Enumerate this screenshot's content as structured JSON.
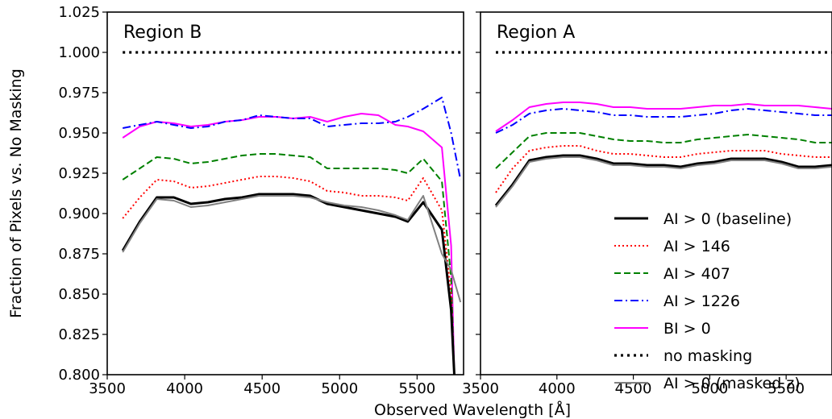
{
  "chart_data": {
    "type": "line",
    "xlabel": "Observed Wavelength [Å]",
    "ylabel": "Fraction of Pixels vs. No Masking",
    "ylim": [
      0.8,
      1.025
    ],
    "yticks": [
      0.8,
      0.825,
      0.85,
      0.875,
      0.9,
      0.925,
      0.95,
      0.975,
      1.0,
      1.025
    ],
    "ytick_labels": [
      "0.800",
      "0.825",
      "0.850",
      "0.875",
      "0.900",
      "0.925",
      "0.950",
      "0.975",
      "1.000",
      "1.025"
    ],
    "xticks": [
      3500,
      4000,
      4500,
      5000,
      5500
    ],
    "xtick_labels": [
      "3500",
      "4000",
      "4500",
      "5000",
      "5500"
    ],
    "legend_location": "lower-right of right panel",
    "grid": false,
    "series_styles": [
      {
        "name": "AI > 0 (baseline)",
        "color": "#000000",
        "dash": "solid",
        "width": 3
      },
      {
        "name": "AI > 146",
        "color": "#ff0000",
        "dash": "dotted",
        "width": 2
      },
      {
        "name": "AI > 407",
        "color": "#008000",
        "dash": "dashed",
        "width": 2
      },
      {
        "name": "AI > 1226",
        "color": "#0000ff",
        "dash": "dashdot",
        "width": 2
      },
      {
        "name": "BI > 0",
        "color": "#ff00ff",
        "dash": "solid",
        "width": 2
      },
      {
        "name": "no masking",
        "color": "#000000",
        "dash": "dotted-thick",
        "width": 3
      },
      {
        "name": "AI > 0 (masked z)",
        "color": "#808080",
        "dash": "solid",
        "width": 2
      }
    ],
    "panels": [
      {
        "title": "Region B",
        "xlim": [
          3500,
          5800
        ],
        "series": [
          {
            "name": "AI > 0 (baseline)",
            "x": [
              3600,
              3710,
              3820,
              3930,
              4040,
              4150,
              4260,
              4370,
              4480,
              4590,
              4700,
              4810,
              4920,
              5030,
              5140,
              5250,
              5360,
              5440,
              5540,
              5660,
              5720,
              5740
            ],
            "y": [
              0.877,
              0.895,
              0.91,
              0.91,
              0.906,
              0.907,
              0.909,
              0.91,
              0.912,
              0.912,
              0.912,
              0.911,
              0.906,
              0.904,
              0.902,
              0.9,
              0.898,
              0.895,
              0.907,
              0.89,
              0.84,
              0.8
            ]
          },
          {
            "name": "AI > 146",
            "x": [
              3600,
              3710,
              3820,
              3930,
              4040,
              4150,
              4260,
              4370,
              4480,
              4590,
              4700,
              4810,
              4920,
              5030,
              5140,
              5250,
              5360,
              5440,
              5540,
              5660,
              5720,
              5740
            ],
            "y": [
              0.897,
              0.91,
              0.921,
              0.92,
              0.916,
              0.917,
              0.919,
              0.921,
              0.923,
              0.923,
              0.922,
              0.92,
              0.914,
              0.913,
              0.911,
              0.911,
              0.91,
              0.908,
              0.922,
              0.902,
              0.85,
              0.8
            ]
          },
          {
            "name": "AI > 407",
            "x": [
              3600,
              3710,
              3820,
              3930,
              4040,
              4150,
              4260,
              4370,
              4480,
              4590,
              4700,
              4810,
              4920,
              5030,
              5140,
              5250,
              5360,
              5440,
              5540,
              5660,
              5720,
              5740
            ],
            "y": [
              0.921,
              0.928,
              0.935,
              0.934,
              0.931,
              0.932,
              0.934,
              0.936,
              0.937,
              0.937,
              0.936,
              0.935,
              0.928,
              0.928,
              0.928,
              0.928,
              0.927,
              0.925,
              0.934,
              0.92,
              0.86,
              0.8
            ]
          },
          {
            "name": "AI > 1226",
            "x": [
              3600,
              3710,
              3820,
              3930,
              4040,
              4150,
              4260,
              4370,
              4480,
              4590,
              4700,
              4810,
              4920,
              5030,
              5140,
              5250,
              5360,
              5440,
              5540,
              5660,
              5720,
              5780
            ],
            "y": [
              0.953,
              0.955,
              0.957,
              0.955,
              0.953,
              0.954,
              0.957,
              0.958,
              0.961,
              0.96,
              0.959,
              0.959,
              0.954,
              0.955,
              0.956,
              0.956,
              0.957,
              0.96,
              0.965,
              0.972,
              0.95,
              0.921
            ]
          },
          {
            "name": "BI > 0",
            "x": [
              3600,
              3710,
              3820,
              3930,
              4040,
              4150,
              4260,
              4370,
              4480,
              4590,
              4700,
              4810,
              4920,
              5030,
              5140,
              5250,
              5360,
              5440,
              5540,
              5660,
              5720,
              5740
            ],
            "y": [
              0.947,
              0.954,
              0.957,
              0.956,
              0.954,
              0.955,
              0.957,
              0.958,
              0.96,
              0.96,
              0.959,
              0.96,
              0.957,
              0.96,
              0.962,
              0.961,
              0.955,
              0.954,
              0.951,
              0.941,
              0.88,
              0.8
            ]
          },
          {
            "name": "no masking",
            "x": [
              3600,
              5780
            ],
            "y": [
              1.0,
              1.0
            ]
          },
          {
            "name": "AI > 0 (masked z)",
            "x": [
              3600,
              3710,
              3820,
              3930,
              4040,
              4150,
              4260,
              4370,
              4480,
              4590,
              4700,
              4810,
              4920,
              5030,
              5140,
              5250,
              5360,
              5440,
              5540,
              5660,
              5720,
              5780
            ],
            "y": [
              0.876,
              0.894,
              0.909,
              0.908,
              0.904,
              0.905,
              0.907,
              0.909,
              0.911,
              0.911,
              0.911,
              0.91,
              0.907,
              0.905,
              0.904,
              0.902,
              0.899,
              0.896,
              0.911,
              0.875,
              0.865,
              0.845
            ]
          }
        ]
      },
      {
        "title": "Region A",
        "xlim": [
          3500,
          5800
        ],
        "series": [
          {
            "name": "AI > 0 (baseline)",
            "x": [
              3600,
              3710,
              3820,
              3930,
              4040,
              4150,
              4260,
              4370,
              4480,
              4590,
              4700,
              4810,
              4920,
              5030,
              5140,
              5250,
              5360,
              5470,
              5580,
              5690,
              5800
            ],
            "y": [
              0.905,
              0.918,
              0.933,
              0.935,
              0.936,
              0.936,
              0.934,
              0.931,
              0.931,
              0.93,
              0.93,
              0.929,
              0.931,
              0.932,
              0.934,
              0.934,
              0.934,
              0.932,
              0.929,
              0.929,
              0.93
            ]
          },
          {
            "name": "AI > 146",
            "x": [
              3600,
              3710,
              3820,
              3930,
              4040,
              4150,
              4260,
              4370,
              4480,
              4590,
              4700,
              4810,
              4920,
              5030,
              5140,
              5250,
              5360,
              5470,
              5580,
              5690,
              5800
            ],
            "y": [
              0.913,
              0.928,
              0.939,
              0.941,
              0.942,
              0.942,
              0.939,
              0.937,
              0.937,
              0.936,
              0.935,
              0.935,
              0.937,
              0.938,
              0.939,
              0.939,
              0.939,
              0.937,
              0.936,
              0.935,
              0.935
            ]
          },
          {
            "name": "AI > 407",
            "x": [
              3600,
              3710,
              3820,
              3930,
              4040,
              4150,
              4260,
              4370,
              4480,
              4590,
              4700,
              4810,
              4920,
              5030,
              5140,
              5250,
              5360,
              5470,
              5580,
              5690,
              5800
            ],
            "y": [
              0.928,
              0.938,
              0.948,
              0.95,
              0.95,
              0.95,
              0.948,
              0.946,
              0.945,
              0.945,
              0.944,
              0.944,
              0.946,
              0.947,
              0.948,
              0.949,
              0.948,
              0.947,
              0.946,
              0.944,
              0.944
            ]
          },
          {
            "name": "AI > 1226",
            "x": [
              3600,
              3710,
              3820,
              3930,
              4040,
              4150,
              4260,
              4370,
              4480,
              4590,
              4700,
              4810,
              4920,
              5030,
              5140,
              5250,
              5360,
              5470,
              5580,
              5690,
              5800
            ],
            "y": [
              0.95,
              0.955,
              0.962,
              0.964,
              0.965,
              0.964,
              0.963,
              0.961,
              0.961,
              0.96,
              0.96,
              0.96,
              0.961,
              0.962,
              0.964,
              0.965,
              0.964,
              0.963,
              0.962,
              0.961,
              0.961
            ]
          },
          {
            "name": "BI > 0",
            "x": [
              3600,
              3710,
              3820,
              3930,
              4040,
              4150,
              4260,
              4370,
              4480,
              4590,
              4700,
              4810,
              4920,
              5030,
              5140,
              5250,
              5360,
              5470,
              5580,
              5690,
              5800
            ],
            "y": [
              0.951,
              0.958,
              0.966,
              0.968,
              0.969,
              0.969,
              0.968,
              0.966,
              0.966,
              0.965,
              0.965,
              0.965,
              0.966,
              0.967,
              0.967,
              0.968,
              0.967,
              0.967,
              0.967,
              0.966,
              0.965
            ]
          },
          {
            "name": "no masking",
            "x": [
              3600,
              5800
            ],
            "y": [
              1.0,
              1.0
            ]
          },
          {
            "name": "AI > 0 (masked z)",
            "x": [
              3600,
              3710,
              3820,
              3930,
              4040,
              4150,
              4260,
              4370,
              4480,
              4590,
              4700,
              4810,
              4920,
              5030,
              5140,
              5250,
              5360,
              5470,
              5580,
              5690,
              5800
            ],
            "y": [
              0.904,
              0.917,
              0.932,
              0.934,
              0.935,
              0.935,
              0.933,
              0.93,
              0.93,
              0.929,
              0.929,
              0.928,
              0.93,
              0.931,
              0.933,
              0.933,
              0.933,
              0.931,
              0.928,
              0.928,
              0.929
            ]
          }
        ]
      }
    ]
  }
}
